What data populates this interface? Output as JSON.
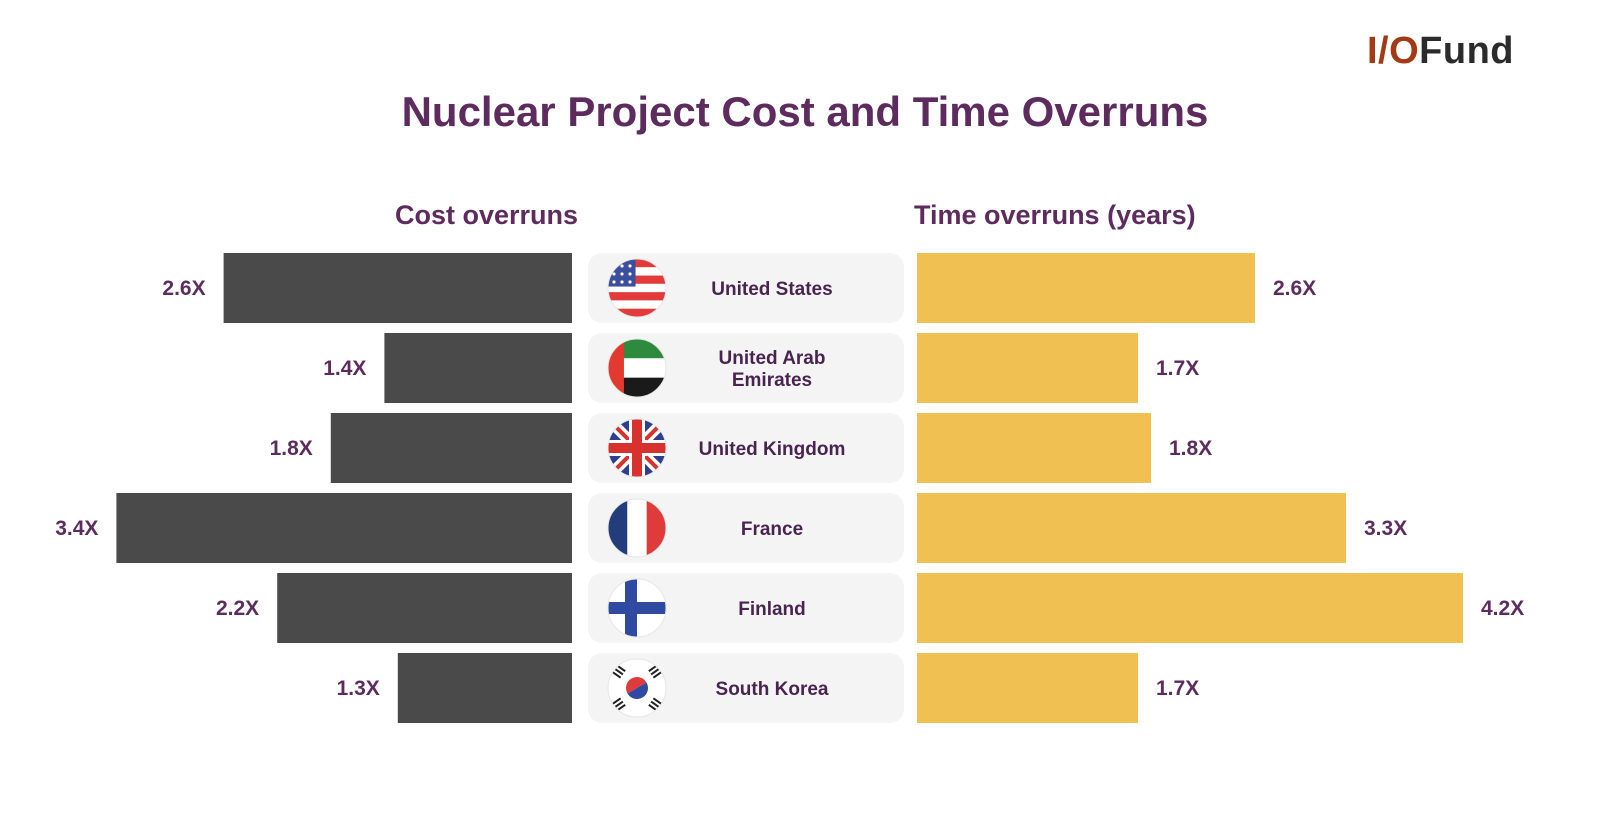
{
  "brand": {
    "logo_prefix": "I/O",
    "logo_suffix": "Fund"
  },
  "colors": {
    "cost": "#4a4a4a",
    "time": "#f0c152",
    "label_box": "#f4f4f5",
    "title": "#5e2b5e"
  },
  "chart_data": {
    "type": "bar",
    "title": "Nuclear Project Cost and Time Overruns",
    "categories": [
      "United States",
      "United Arab Emirates",
      "United Kingdom",
      "France",
      "Finland",
      "South Korea"
    ],
    "category_flags": [
      "us-flag-icon",
      "uae-flag-icon",
      "uk-flag-icon",
      "france-flag-icon",
      "finland-flag-icon",
      "south-korea-flag-icon"
    ],
    "series": [
      {
        "name": "Cost overruns",
        "values": [
          2.6,
          1.4,
          1.8,
          3.4,
          2.2,
          1.3
        ],
        "labels": [
          "2.6X",
          "1.4X",
          "1.8X",
          "3.4X",
          "2.2X",
          "1.3X"
        ]
      },
      {
        "name": "Time overruns (years)",
        "values": [
          2.6,
          1.7,
          1.8,
          3.3,
          4.2,
          1.7
        ],
        "labels": [
          "2.6X",
          "1.7X",
          "1.8X",
          "3.3X",
          "4.2X",
          "1.7X"
        ]
      }
    ]
  }
}
